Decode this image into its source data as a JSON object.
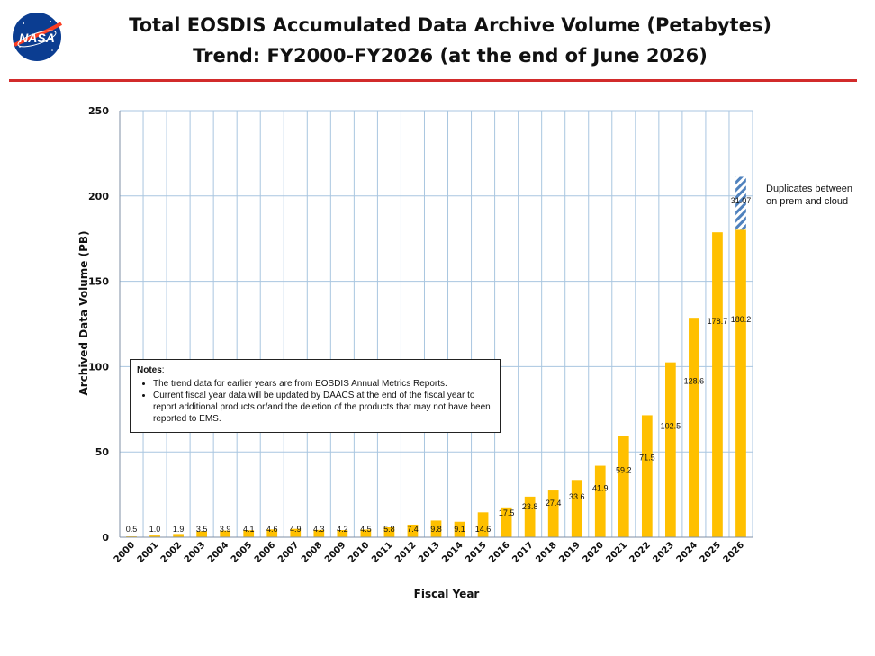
{
  "header": {
    "title_line1": "Total EOSDIS Accumulated Data Archive Volume (Petabytes)",
    "title_line2": "Trend: FY2000-FY2026 (at the end of June 2026)",
    "logo_text": "NASA"
  },
  "colors": {
    "bar": "#FFC000",
    "accent_line": "#D22B2B",
    "grid": "#A9C6E0",
    "hatch": "#4F81BD"
  },
  "notes": {
    "heading": "Notes",
    "colon": ":",
    "items": [
      "The trend data for earlier years are from EOSDIS Annual Metrics Reports.",
      "Current fiscal year data will be updated by DAACS at the end of the fiscal year to report additional products or/and the deletion of the products that may not have been reported to EMS."
    ]
  },
  "duplicates_note": "Duplicates between on prem and cloud",
  "chart_data": {
    "type": "bar",
    "title": "",
    "xlabel": "Fiscal Year",
    "ylabel": "Archived Data Volume (PB)",
    "ylim": [
      0,
      250
    ],
    "yticks": [
      0,
      50,
      100,
      150,
      200,
      250
    ],
    "grid": true,
    "categories": [
      "2000",
      "2001",
      "2002",
      "2003",
      "2004",
      "2005",
      "2006",
      "2007",
      "2008",
      "2009",
      "2010",
      "2011",
      "2012",
      "2013",
      "2014",
      "2015",
      "2016",
      "2017",
      "2018",
      "2019",
      "2020",
      "2021",
      "2022",
      "2023",
      "2024",
      "2025",
      "2026"
    ],
    "values": [
      0.5,
      1.0,
      1.9,
      3.5,
      3.9,
      4.1,
      4.6,
      4.9,
      4.3,
      4.2,
      4.5,
      5.8,
      7.4,
      9.8,
      9.1,
      14.6,
      17.5,
      23.8,
      27.4,
      33.6,
      41.9,
      59.2,
      71.5,
      102.5,
      128.6,
      178.7,
      180.2
    ],
    "value_labels": [
      "0.5",
      "1.0",
      "1.9",
      "3.5",
      "3.9",
      "4.1",
      "4.6",
      "4.9",
      "4.3",
      "4.2",
      "4.5",
      "5.8",
      "7.4",
      "9.8",
      "9.1",
      "14.6",
      "17.5",
      "23.8",
      "27.4",
      "33.6",
      "41.9",
      "59.2",
      "71.5",
      "102.5",
      "128.6",
      "178.7",
      "180.2"
    ],
    "stacked_extra": {
      "category": "2026",
      "value": 31.07,
      "label": "31.07",
      "style": "hatched"
    }
  }
}
